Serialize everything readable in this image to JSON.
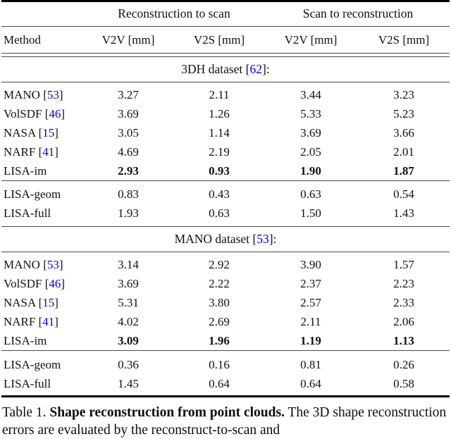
{
  "colors": {
    "citation_blue": "#0000EE",
    "text": "#101010",
    "rule_thin": "#4a4a4a",
    "rule_thick": "#000000"
  },
  "table": {
    "group_headers": [
      "Reconstruction to scan",
      "Scan to reconstruction"
    ],
    "column_headers": [
      "Method",
      "V2V [mm]",
      "V2S [mm]",
      "V2V [mm]",
      "V2S [mm]"
    ],
    "sections": [
      {
        "title_pre": "3DH dataset [",
        "title_cite": "62",
        "title_post": "]:",
        "main_rows": [
          {
            "method": "MANO [",
            "cite": "53",
            "close": "]",
            "v": [
              "3.27",
              "2.11",
              "3.44",
              "3.23"
            ]
          },
          {
            "method": "VolSDF [",
            "cite": "46",
            "close": "]",
            "v": [
              "3.69",
              "1.26",
              "5.33",
              "5.23"
            ]
          },
          {
            "method": "NASA [",
            "cite": "15",
            "close": "]",
            "v": [
              "3.05",
              "1.14",
              "3.69",
              "3.66"
            ]
          },
          {
            "method": "NARF [",
            "cite": "41",
            "close": "]",
            "v": [
              "4.69",
              "2.19",
              "2.05",
              "2.01"
            ]
          },
          {
            "method": "LISA-im",
            "cite": "",
            "close": "",
            "v": [
              "2.93",
              "0.93",
              "1.90",
              "1.87"
            ]
          }
        ],
        "ablation_rows": [
          {
            "method": "LISA-geom",
            "cite": "",
            "close": "",
            "v": [
              "0.83",
              "0.43",
              "0.63",
              "0.54"
            ]
          },
          {
            "method": "LISA-full",
            "cite": "",
            "close": "",
            "v": [
              "1.93",
              "0.63",
              "1.50",
              "1.43"
            ]
          }
        ]
      },
      {
        "title_pre": "MANO dataset [",
        "title_cite": "53",
        "title_post": "]:",
        "main_rows": [
          {
            "method": "MANO [",
            "cite": "53",
            "close": "]",
            "v": [
              "3.14",
              "2.92",
              "3.90",
              "1.57"
            ]
          },
          {
            "method": "VolSDF [",
            "cite": "46",
            "close": "]",
            "v": [
              "3.69",
              "2.22",
              "2.37",
              "2.23"
            ]
          },
          {
            "method": "NASA [",
            "cite": "15",
            "close": "]",
            "v": [
              "5.31",
              "3.80",
              "2.57",
              "2.33"
            ]
          },
          {
            "method": "NARF [",
            "cite": "41",
            "close": "]",
            "v": [
              "4.02",
              "2.69",
              "2.11",
              "2.06"
            ]
          },
          {
            "method": "LISA-im",
            "cite": "",
            "close": "",
            "v": [
              "3.09",
              "1.96",
              "1.19",
              "1.13"
            ]
          }
        ],
        "ablation_rows": [
          {
            "method": "LISA-geom",
            "cite": "",
            "close": "",
            "v": [
              "0.36",
              "0.16",
              "0.81",
              "0.26"
            ]
          },
          {
            "method": "LISA-full",
            "cite": "",
            "close": "",
            "v": [
              "1.45",
              "0.64",
              "0.64",
              "0.58"
            ]
          }
        ]
      }
    ]
  },
  "caption": {
    "label": "Table 1.",
    "title_bold": "Shape reconstruction from point clouds.",
    "text_line1": "The 3D shape",
    "text_line2": "reconstruction errors are evaluated by the reconstruct-to-scan and"
  }
}
